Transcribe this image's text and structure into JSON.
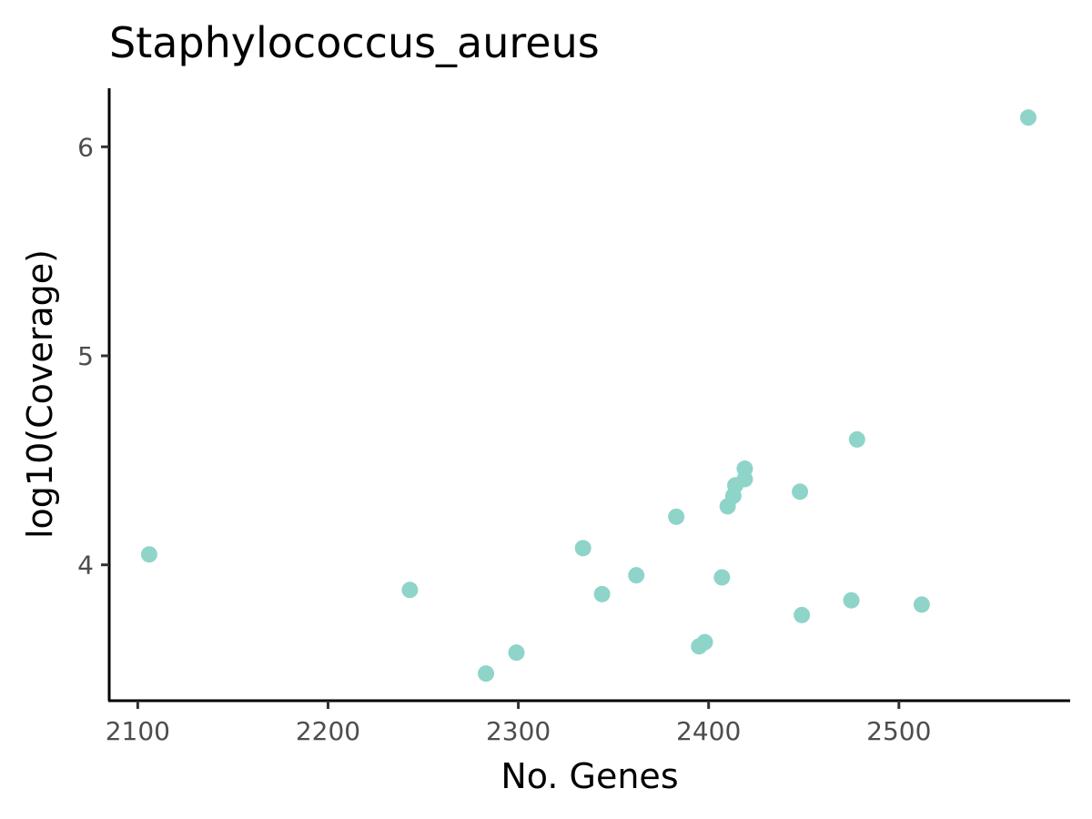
{
  "chart_data": {
    "type": "scatter",
    "title": "Staphylococcus_aureus",
    "xlabel": "No. Genes",
    "ylabel": "log10(Coverage)",
    "xlim": [
      2085,
      2590
    ],
    "ylim": [
      3.35,
      6.28
    ],
    "xticks": [
      2100,
      2200,
      2300,
      2400,
      2500
    ],
    "yticks": [
      4,
      5,
      6
    ],
    "grid": false,
    "legend": "none",
    "point_color": "#8fd4c8",
    "points": [
      {
        "x": 2106,
        "y": 4.05
      },
      {
        "x": 2243,
        "y": 3.88
      },
      {
        "x": 2283,
        "y": 3.48
      },
      {
        "x": 2299,
        "y": 3.58
      },
      {
        "x": 2334,
        "y": 4.08
      },
      {
        "x": 2344,
        "y": 3.86
      },
      {
        "x": 2362,
        "y": 3.95
      },
      {
        "x": 2383,
        "y": 4.23
      },
      {
        "x": 2395,
        "y": 3.61
      },
      {
        "x": 2398,
        "y": 3.63
      },
      {
        "x": 2407,
        "y": 3.94
      },
      {
        "x": 2410,
        "y": 4.28
      },
      {
        "x": 2413,
        "y": 4.33
      },
      {
        "x": 2414,
        "y": 4.38
      },
      {
        "x": 2419,
        "y": 4.41
      },
      {
        "x": 2419,
        "y": 4.46
      },
      {
        "x": 2448,
        "y": 4.35
      },
      {
        "x": 2449,
        "y": 3.76
      },
      {
        "x": 2475,
        "y": 3.83
      },
      {
        "x": 2478,
        "y": 4.6
      },
      {
        "x": 2512,
        "y": 3.81
      },
      {
        "x": 2568,
        "y": 6.14
      }
    ]
  }
}
